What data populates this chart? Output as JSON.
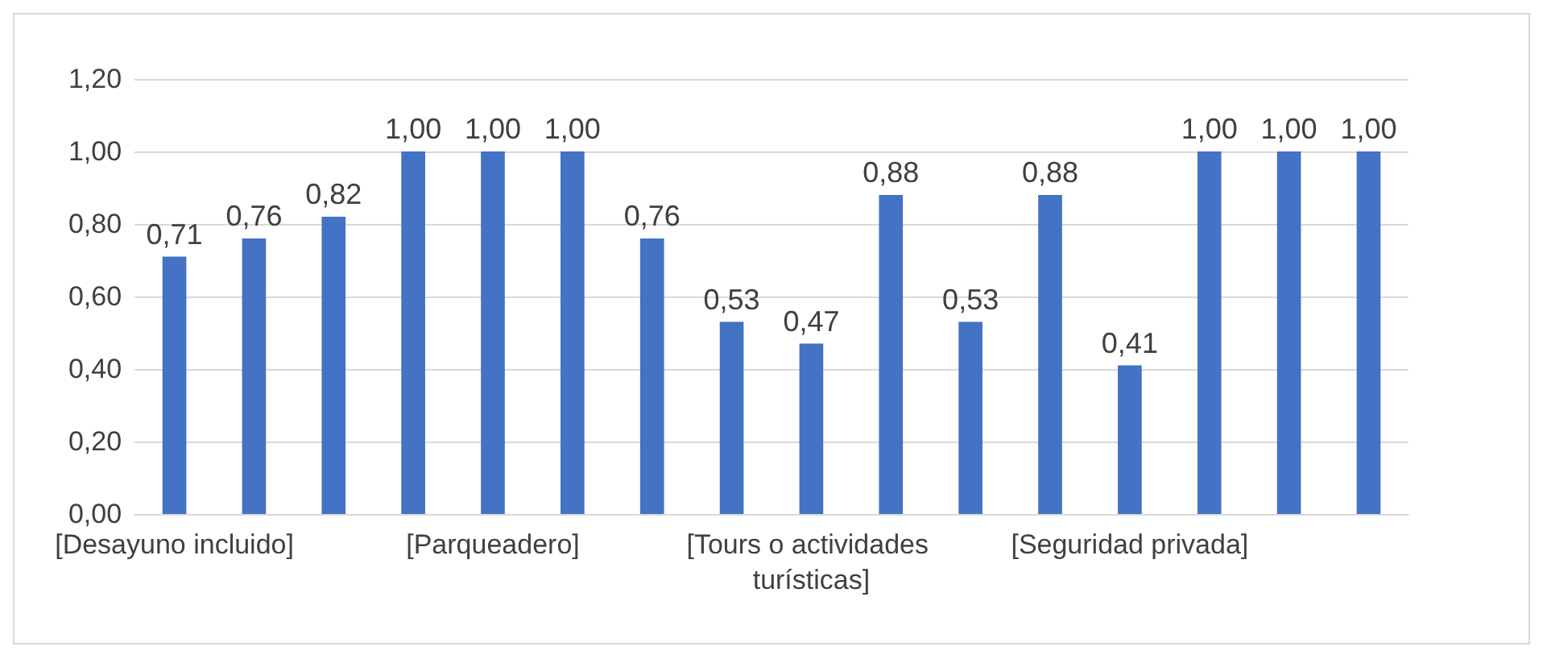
{
  "chart_data": {
    "type": "bar",
    "categories": [
      "[Desayuno incluido]",
      null,
      null,
      null,
      "[Parqueadero]",
      null,
      null,
      null,
      "[Tours o actividades turísticas]",
      null,
      null,
      null,
      "[Seguridad privada]",
      null,
      null,
      null
    ],
    "values": [
      0.71,
      0.76,
      0.82,
      1.0,
      1.0,
      1.0,
      0.76,
      0.53,
      0.47,
      0.88,
      0.53,
      0.88,
      0.41,
      1.0,
      1.0,
      1.0
    ],
    "value_labels": [
      "0,71",
      "0,76",
      "0,82",
      "1,00",
      "1,00",
      "1,00",
      "0,76",
      "0,53",
      "0,47",
      "0,88",
      "0,53",
      "0,88",
      "0,41",
      "1,00",
      "1,00",
      "1,00"
    ],
    "color": "#4472c4",
    "ylim": [
      0,
      1.2
    ],
    "yticks": [
      {
        "value": 0,
        "label": "0,00"
      },
      {
        "value": 0.2,
        "label": "0,20"
      },
      {
        "value": 0.4,
        "label": "0,40"
      },
      {
        "value": 0.6,
        "label": "0,60"
      },
      {
        "value": 0.8,
        "label": "0,80"
      },
      {
        "value": 1.0,
        "label": "1,00"
      },
      {
        "value": 1.2,
        "label": "1,20"
      }
    ],
    "grid": "y"
  }
}
